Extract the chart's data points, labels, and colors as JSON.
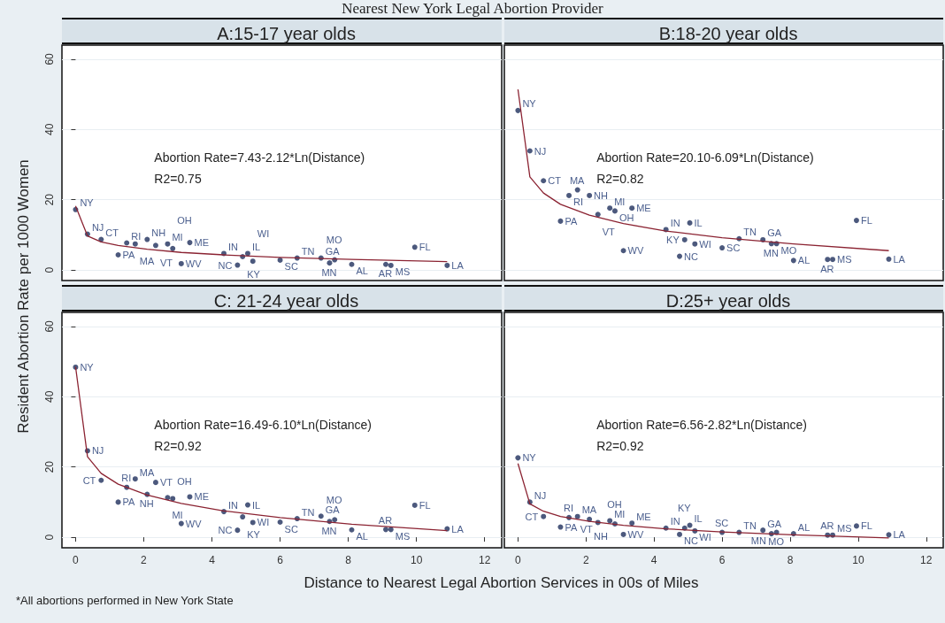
{
  "chart_data": [
    {
      "type": "scatter",
      "title": "A:15-17 year olds",
      "subtitle": "Nearest New York Legal Abortion Provider",
      "annotations": [
        "Abortion Rate=7.43-2.12*Ln(Distance)",
        "R2=0.75"
      ],
      "xlim": [
        -0.4,
        12.5
      ],
      "xticks": [
        0,
        2,
        4,
        6,
        8,
        10,
        12
      ],
      "ylim": [
        -3,
        64
      ],
      "yticks": [
        0,
        20,
        40,
        60
      ],
      "grid": "y",
      "tick_labels": "y",
      "marker": "circle",
      "series": [
        {
          "color": "#1f2f5c",
          "x": [
            0,
            0.35,
            0.75,
            1.5,
            1.75,
            1.25,
            2.1,
            2.35,
            2.7,
            2.85,
            3.35,
            3.1,
            4.35,
            5.05,
            4.9,
            4.75,
            5.2,
            6.0,
            6.5,
            7.2,
            7.6,
            7.45,
            8.1,
            9.1,
            9.25,
            9.95,
            10.9
          ],
          "values": [
            17.2,
            10.2,
            8.7,
            7.7,
            7.4,
            4.3,
            8.7,
            7.0,
            7.4,
            6.1,
            7.8,
            1.8,
            4.7,
            4.7,
            3.8,
            1.4,
            2.5,
            2.8,
            3.4,
            3.4,
            2.9,
            2.0,
            1.6,
            1.6,
            1.3,
            6.5,
            1.3
          ],
          "value_labels": [
            "NY",
            "NJ",
            "CT",
            "RI",
            "MA",
            "PA",
            "NH",
            "VT",
            "MI",
            "OH",
            "ME",
            "WV",
            "IN",
            "IL",
            "KY",
            "NC",
            "WI",
            "SC",
            "TN",
            "GA",
            "MO",
            "MN",
            "AL",
            "AR",
            "MS",
            "FL",
            "LA"
          ]
        },
        {
          "type": "line",
          "marker": "none",
          "color": "#8b2332",
          "x": [
            0,
            0.35,
            0.75,
            1.25,
            2.1,
            3.1,
            4.35,
            6.0,
            8.1,
            10.9
          ],
          "values": [
            18.2,
            9.7,
            8.0,
            7.0,
            5.9,
            5.0,
            4.3,
            3.6,
            3.0,
            2.4
          ]
        }
      ]
    },
    {
      "type": "scatter",
      "title": "B:18-20 year olds",
      "annotations": [
        "Abortion Rate=20.10-6.09*Ln(Distance)",
        "R2=0.82"
      ],
      "xlim": [
        -0.4,
        12.5
      ],
      "xticks": [
        0,
        2,
        4,
        6,
        8,
        10,
        12
      ],
      "ylim": [
        -3,
        64
      ],
      "yticks": [
        0,
        20,
        40,
        60
      ],
      "grid": "y",
      "tick_labels": false,
      "marker": "circle",
      "series": [
        {
          "color": "#1f2f5c",
          "x": [
            0,
            0.35,
            0.75,
            1.5,
            1.75,
            1.25,
            2.1,
            2.35,
            2.7,
            2.85,
            3.35,
            3.1,
            4.35,
            5.05,
            4.9,
            4.75,
            5.2,
            6.0,
            6.5,
            7.2,
            7.6,
            7.45,
            8.1,
            9.1,
            9.25,
            9.95,
            10.9
          ],
          "values": [
            45.4,
            33.9,
            25.4,
            21.2,
            22.8,
            13.9,
            21.2,
            15.8,
            17.6,
            16.8,
            17.6,
            5.5,
            11.5,
            13.4,
            8.6,
            3.9,
            7.4,
            6.3,
            8.9,
            8.6,
            7.5,
            7.5,
            2.7,
            3.0,
            3.0,
            14.1,
            3.1
          ],
          "value_labels": [
            "NY",
            "NJ",
            "CT",
            "RI",
            "MA",
            "PA",
            "NH",
            "VT",
            "MI",
            "OH",
            "ME",
            "WV",
            "IN",
            "IL",
            "KY",
            "NC",
            "WI",
            "SC",
            "TN",
            "GA",
            "MO",
            "MN",
            "AL",
            "AR",
            "MS",
            "FL",
            "LA"
          ]
        },
        {
          "type": "line",
          "marker": "none",
          "color": "#8b2332",
          "x": [
            0,
            0.35,
            0.75,
            1.25,
            2.1,
            3.1,
            4.35,
            6.0,
            8.1,
            10.9
          ],
          "values": [
            51.4,
            26.5,
            21.9,
            18.7,
            15.6,
            13.2,
            11.1,
            9.2,
            7.4,
            5.5
          ]
        }
      ]
    },
    {
      "type": "scatter",
      "title": "C: 21-24 year olds",
      "xlabel": "Distance to Nearest Legal Abortion Services in 00s of Miles",
      "ylabel": "Resident Abortion Rate per 1000 Women",
      "annotations": [
        "Abortion Rate=16.49-6.10*Ln(Distance)",
        "R2=0.92",
        "*All abortions performed in New York State"
      ],
      "xlim": [
        -0.4,
        12.5
      ],
      "xticks": [
        0,
        2,
        4,
        6,
        8,
        10,
        12
      ],
      "ylim": [
        -3,
        64
      ],
      "yticks": [
        0,
        20,
        40,
        60
      ],
      "grid": "y",
      "marker": "circle",
      "series": [
        {
          "color": "#1f2f5c",
          "x": [
            0,
            0.35,
            0.75,
            1.5,
            1.75,
            1.25,
            2.1,
            2.35,
            2.7,
            2.85,
            3.35,
            3.1,
            4.35,
            5.05,
            4.9,
            4.75,
            5.2,
            6.0,
            6.5,
            7.2,
            7.6,
            7.45,
            8.1,
            9.1,
            9.25,
            9.95,
            10.9
          ],
          "values": [
            48.4,
            24.6,
            16.2,
            14.2,
            16.6,
            10.0,
            12.2,
            15.6,
            11.3,
            11.0,
            11.5,
            3.9,
            7.3,
            9.2,
            5.8,
            2.0,
            4.2,
            4.3,
            5.3,
            6.0,
            5.0,
            4.5,
            2.1,
            2.2,
            2.2,
            9.1,
            2.4
          ],
          "value_labels": [
            "NY",
            "NJ",
            "CT",
            "RI",
            "MA",
            "PA",
            "NH",
            "VT",
            "MI",
            "OH",
            "ME",
            "WV",
            "IN",
            "IL",
            "KY",
            "NC",
            "WI",
            "SC",
            "TN",
            "GA",
            "MO",
            "MN",
            "AL",
            "AR",
            "MS",
            "FL",
            "LA"
          ]
        },
        {
          "type": "line",
          "marker": "none",
          "color": "#8b2332",
          "x": [
            0,
            0.35,
            0.75,
            1.25,
            2.1,
            3.1,
            4.35,
            6.0,
            8.1,
            10.9
          ],
          "values": [
            48.5,
            22.9,
            18.2,
            15.1,
            12.0,
            9.6,
            7.5,
            5.6,
            3.7,
            1.9
          ]
        }
      ]
    },
    {
      "type": "scatter",
      "title": "D:25+ year olds",
      "annotations": [
        "Abortion Rate=6.56-2.82*Ln(Distance)",
        "R2=0.92"
      ],
      "xlim": [
        -0.4,
        12.5
      ],
      "xticks": [
        0,
        2,
        4,
        6,
        8,
        10,
        12
      ],
      "ylim": [
        -3,
        64
      ],
      "yticks": [
        0,
        20,
        40,
        60
      ],
      "grid": "y",
      "tick_labels": "x",
      "marker": "circle",
      "series": [
        {
          "color": "#1f2f5c",
          "x": [
            0,
            0.35,
            0.75,
            1.5,
            1.75,
            1.25,
            2.1,
            2.35,
            2.7,
            2.85,
            3.35,
            3.1,
            4.35,
            5.05,
            4.9,
            4.75,
            5.2,
            6.0,
            6.5,
            7.2,
            7.6,
            7.45,
            8.1,
            9.1,
            9.25,
            9.95,
            10.9
          ],
          "values": [
            22.6,
            10.0,
            5.9,
            5.6,
            5.9,
            2.9,
            5.1,
            4.2,
            4.7,
            3.8,
            4.0,
            0.8,
            2.6,
            3.4,
            2.6,
            0.8,
            1.8,
            1.4,
            1.4,
            2.0,
            1.4,
            1.0,
            1.0,
            0.6,
            0.6,
            3.2,
            0.7
          ],
          "value_labels": [
            "NY",
            "NJ",
            "CT",
            "RI",
            "MA",
            "PA",
            "NH",
            "VT",
            "MI",
            "OH",
            "ME",
            "WV",
            "IN",
            "IL",
            "KY",
            "NC",
            "WI",
            "SC",
            "TN",
            "GA",
            "MO",
            "MN",
            "AL",
            "AR",
            "MS",
            "FL",
            "LA"
          ]
        },
        {
          "type": "line",
          "marker": "none",
          "color": "#8b2332",
          "x": [
            0,
            0.35,
            0.75,
            1.25,
            2.1,
            3.1,
            4.35,
            6.0,
            8.1,
            10.9
          ],
          "values": [
            21.0,
            9.5,
            7.4,
            5.9,
            4.5,
            3.4,
            2.4,
            1.5,
            0.7,
            -0.2
          ]
        }
      ]
    }
  ]
}
